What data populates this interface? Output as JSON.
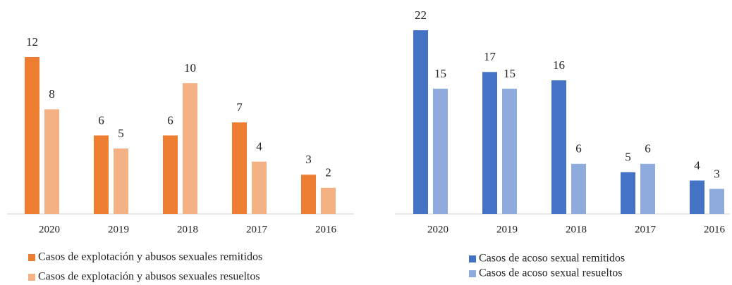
{
  "chart_data": [
    {
      "type": "bar",
      "categories": [
        "2020",
        "2019",
        "2018",
        "2017",
        "2016"
      ],
      "series": [
        {
          "name": "Casos de explotación y abusos sexuales remitidos",
          "color": "#ed7d31",
          "values": [
            12,
            6,
            6,
            7,
            3
          ]
        },
        {
          "name": "Casos de explotación y abusos sexuales resueltos",
          "color": "#f4b183",
          "values": [
            8,
            5,
            10,
            4,
            2
          ]
        }
      ]
    },
    {
      "type": "bar",
      "categories": [
        "2020",
        "2019",
        "2018",
        "2017",
        "2016"
      ],
      "series": [
        {
          "name": "Casos de acoso sexual remitidos",
          "color": "#4472c4",
          "values": [
            22,
            17,
            16,
            5,
            4
          ]
        },
        {
          "name": "Casos de acoso sexual resueltos",
          "color": "#8faadc",
          "values": [
            15,
            15,
            6,
            6,
            3
          ]
        }
      ]
    }
  ]
}
